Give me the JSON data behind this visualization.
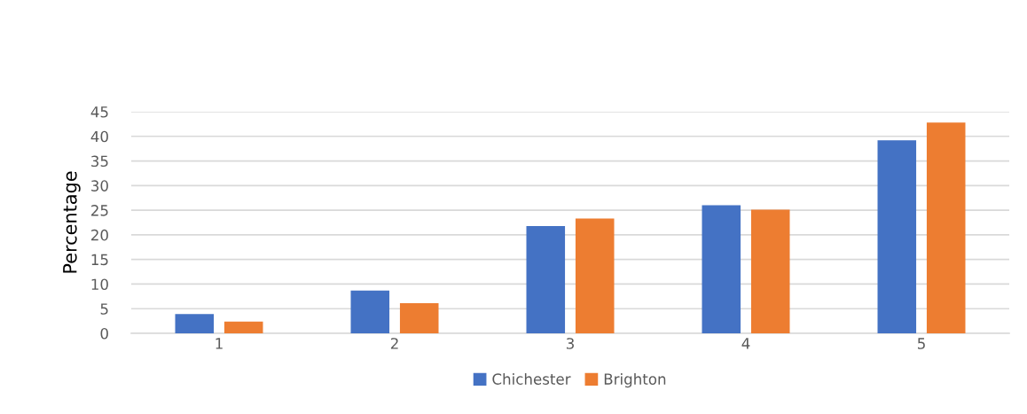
{
  "chart_data": {
    "type": "bar",
    "ylabel": "Percentage",
    "categories": [
      "1",
      "2",
      "3",
      "4",
      "5"
    ],
    "series": [
      {
        "name": "Chichester",
        "color": "#4472c4",
        "values": [
          3.9,
          8.7,
          21.8,
          26.0,
          39.2
        ]
      },
      {
        "name": "Brighton",
        "color": "#ed7d31",
        "values": [
          2.4,
          6.1,
          23.3,
          25.1,
          42.8
        ]
      }
    ],
    "ylim": [
      0,
      45
    ],
    "yticks": [
      0,
      5,
      10,
      15,
      20,
      25,
      30,
      35,
      40,
      45
    ],
    "grid": "y",
    "legend": "bottom"
  }
}
